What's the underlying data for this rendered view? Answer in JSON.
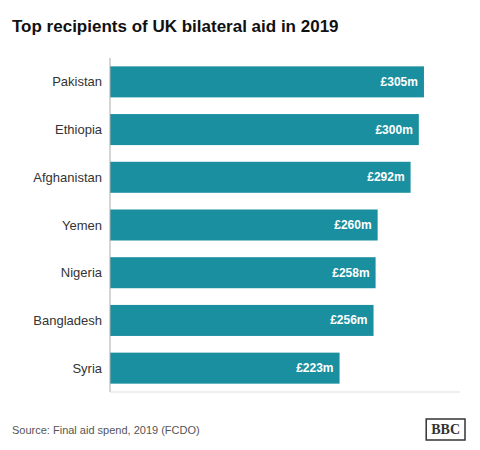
{
  "chart_data": {
    "type": "bar",
    "orientation": "horizontal",
    "title": "Top recipients of UK bilateral aid in 2019",
    "categories": [
      "Pakistan",
      "Ethiopia",
      "Afghanistan",
      "Yemen",
      "Nigeria",
      "Bangladesh",
      "Syria"
    ],
    "values": [
      305,
      300,
      292,
      260,
      258,
      256,
      223
    ],
    "value_labels": [
      "£305m",
      "£300m",
      "£292m",
      "£260m",
      "£258m",
      "£256m",
      "£223m"
    ],
    "data_labels": true,
    "color": "#1a8fa0",
    "xlim": [
      0,
      340
    ],
    "tick_labels": "y",
    "grid": false,
    "annotations": [
      "Source: Final aid spend, 2019 (FCDO)",
      "BBC"
    ]
  }
}
